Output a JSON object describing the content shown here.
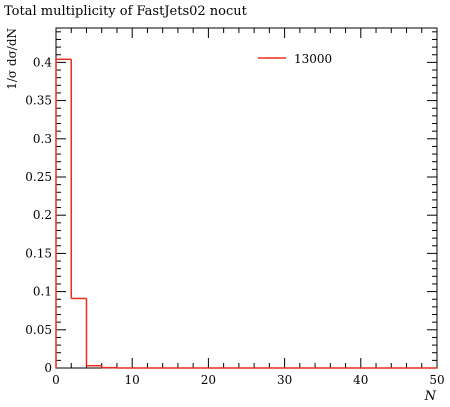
{
  "chart_data": {
    "type": "histogram",
    "title": "Total multiplicity of FastJets02 nocut",
    "xlabel": "N",
    "ylabel": "1/σ dσ/dN",
    "xlim": [
      0,
      50
    ],
    "ylim": [
      0,
      0.445
    ],
    "x_ticks": [
      "0",
      "10",
      "20",
      "30",
      "40",
      "50"
    ],
    "y_ticks": [
      "0",
      "0.05",
      "0.1",
      "0.15",
      "0.2",
      "0.25",
      "0.3",
      "0.35",
      "0.4"
    ],
    "legend_position": "top-right",
    "series": [
      {
        "name": "13000",
        "color": "#ee2b1e",
        "bin_edges": [
          0,
          2,
          4,
          6,
          8,
          10,
          12,
          14,
          16,
          18,
          20,
          22,
          24,
          26,
          28,
          30,
          32,
          34,
          36,
          38,
          40,
          42,
          44,
          46,
          48,
          50
        ],
        "values": [
          0.404,
          0.091,
          0.003,
          0.0005,
          0,
          0,
          0,
          0,
          0,
          0,
          0,
          0,
          0,
          0,
          0,
          0,
          0,
          0,
          0,
          0,
          0,
          0,
          0,
          0,
          0
        ]
      }
    ]
  }
}
